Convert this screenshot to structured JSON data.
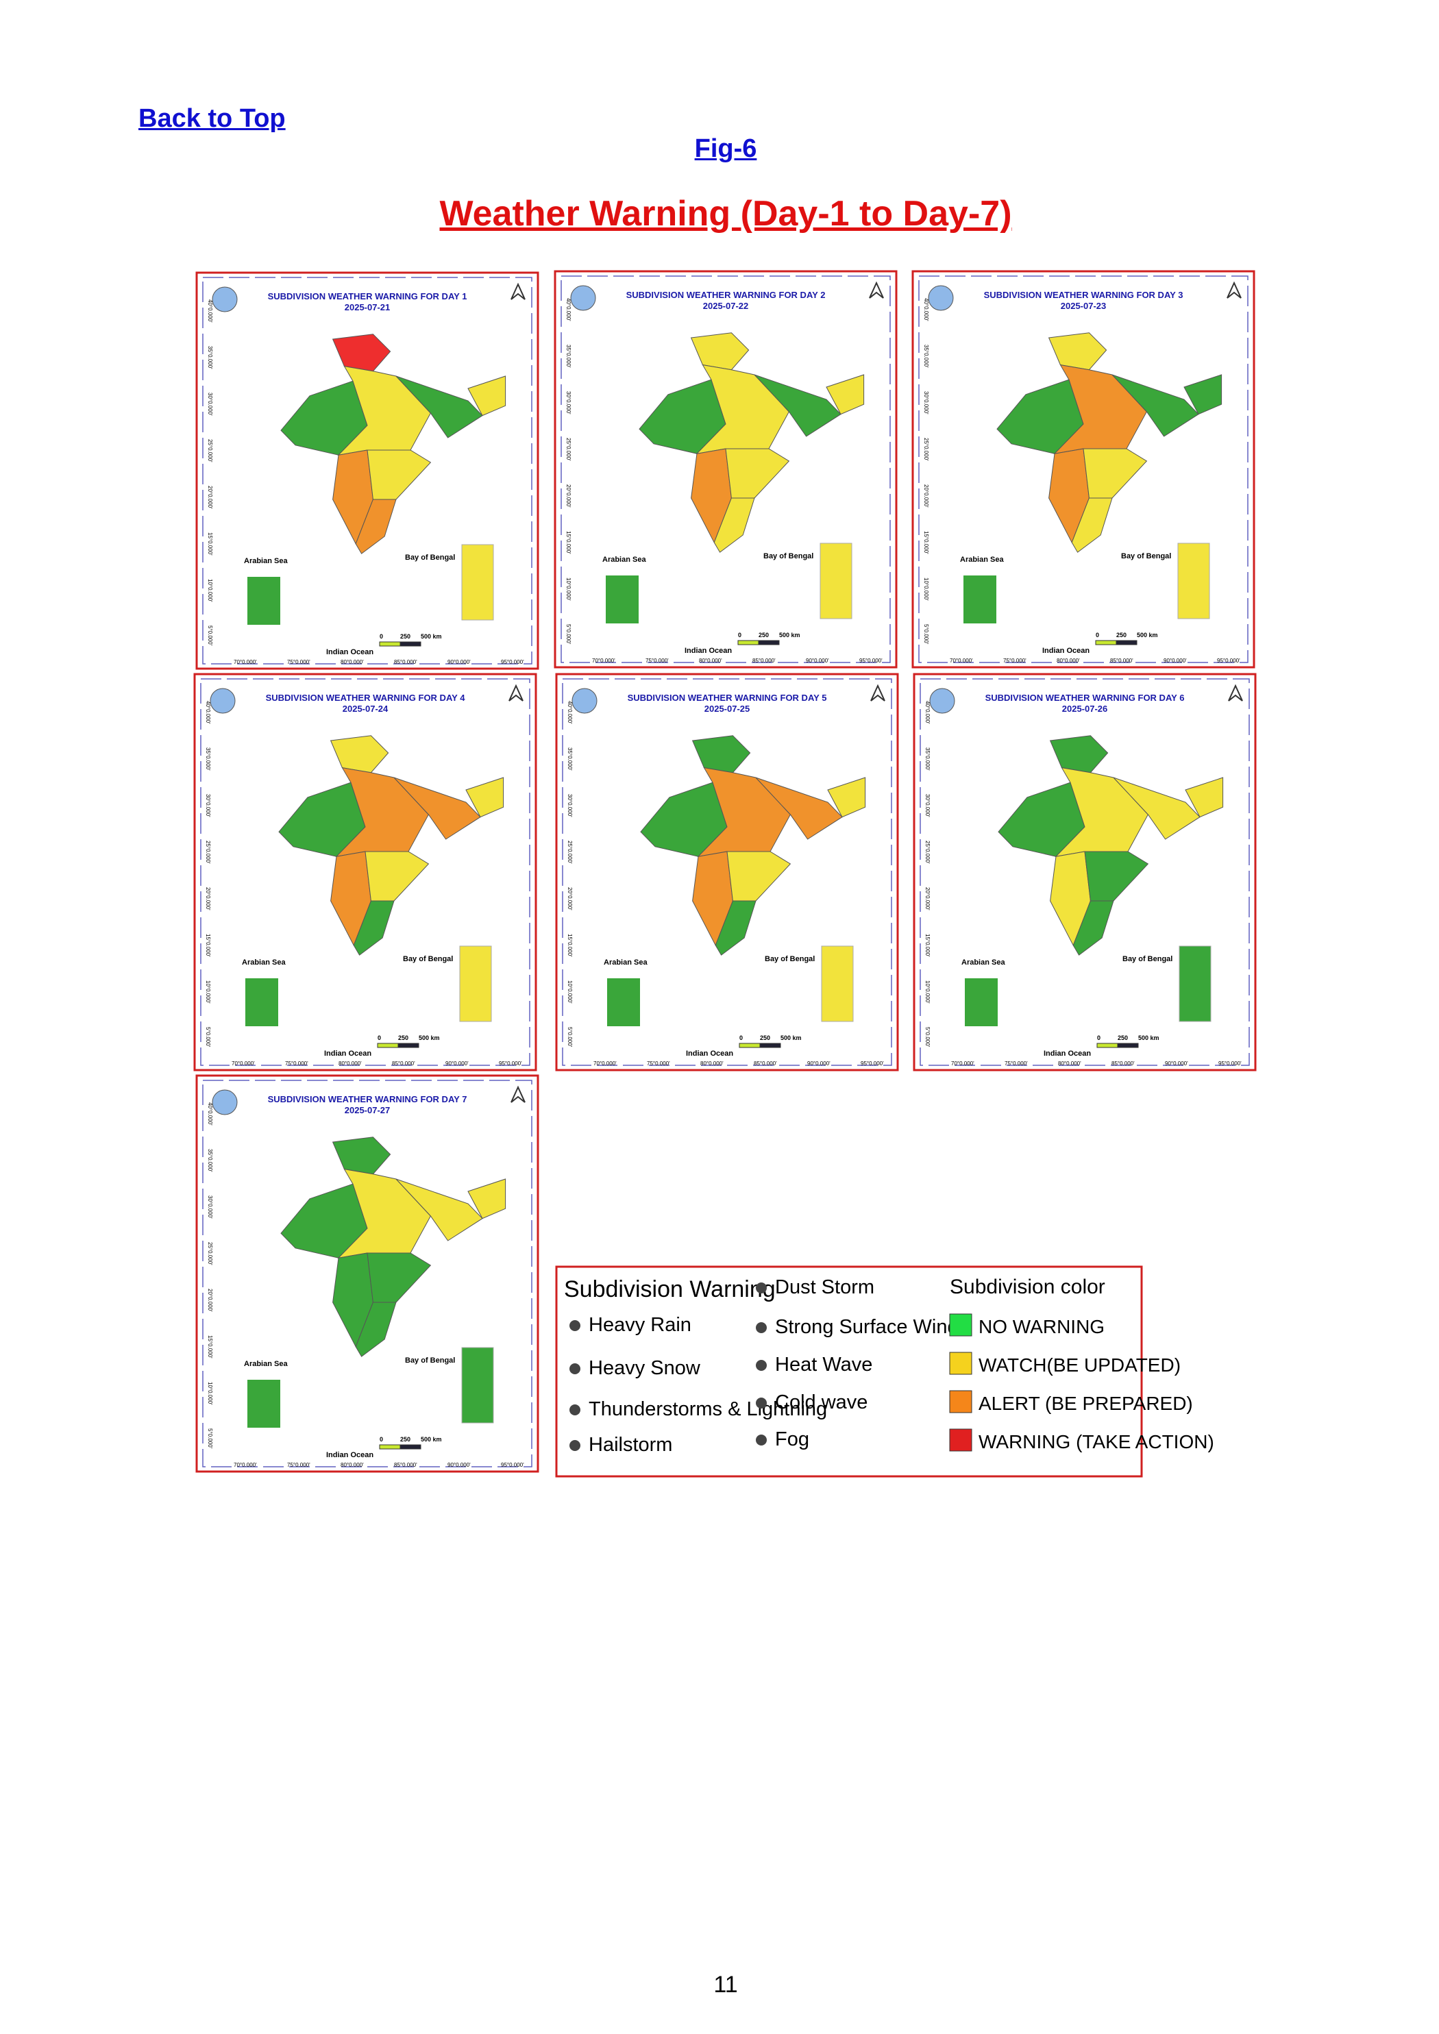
{
  "header": {
    "link": "Back to Top",
    "figure": "Fig-6",
    "title": "Weather Warning (Day-1 to Day-7)"
  },
  "panels": [
    {
      "title": "SUBDIVISION WEATHER WARNING FOR DAY 1",
      "date": "2025-07-21"
    },
    {
      "title": "SUBDIVISION WEATHER WARNING FOR DAY 2",
      "date": "2025-07-22"
    },
    {
      "title": "SUBDIVISION WEATHER WARNING FOR DAY 3",
      "date": "2025-07-23"
    },
    {
      "title": "SUBDIVISION WEATHER WARNING FOR DAY 4",
      "date": "2025-07-24"
    },
    {
      "title": "SUBDIVISION WEATHER WARNING FOR DAY 5",
      "date": "2025-07-25"
    },
    {
      "title": "SUBDIVISION WEATHER WARNING FOR DAY 6",
      "date": "2025-07-26"
    },
    {
      "title": "SUBDIVISION WEATHER WARNING FOR DAY 7",
      "date": "2025-07-27"
    }
  ],
  "map_labels": {
    "arabian_sea": "Arabian Sea",
    "bay_of_bengal": "Bay of Bengal",
    "indian_ocean": "Indian Ocean",
    "scale": [
      "0",
      "250",
      "500 km"
    ],
    "longitudes": [
      "70°0.000'",
      "75°0.000'",
      "80°0.000'",
      "85°0.000'",
      "90°0.000'",
      "95°0.000'"
    ],
    "latitudes": [
      "40°0.000'",
      "35°0.000'",
      "30°0.000'",
      "25°0.000'",
      "20°0.000'",
      "15°0.000'",
      "10°0.000'",
      "5°0.000'"
    ]
  },
  "legend": {
    "warning_title": "Subdivision Warning",
    "warnings": [
      "Heavy Rain",
      "Heavy Snow",
      "Thunderstorms & Lightning",
      "Hailstorm",
      "Dust Storm",
      "Strong Surface Winds",
      "Heat Wave",
      "Cold wave",
      "Fog"
    ],
    "color_title": "Subdivision color",
    "colors": [
      "NO WARNING",
      "WATCH(BE UPDATED)",
      "ALERT (BE PREPARED)",
      "WARNING (TAKE ACTION)"
    ]
  },
  "footer": {
    "page": "11"
  }
}
